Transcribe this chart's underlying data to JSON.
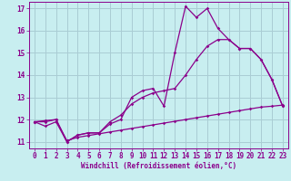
{
  "bg_color": "#c8eef0",
  "grid_color": "#aaccd4",
  "line_color": "#8b008b",
  "xlabel": "Windchill (Refroidissement éolien,°C)",
  "xlim": [
    -0.5,
    23.5
  ],
  "ylim": [
    10.7,
    17.3
  ],
  "yticks": [
    11,
    12,
    13,
    14,
    15,
    16,
    17
  ],
  "xticks": [
    0,
    1,
    2,
    3,
    4,
    5,
    6,
    7,
    8,
    9,
    10,
    11,
    12,
    13,
    14,
    15,
    16,
    17,
    18,
    19,
    20,
    21,
    22,
    23
  ],
  "line1_x": [
    0,
    1,
    2,
    3,
    4,
    5,
    6,
    7,
    8,
    9,
    10,
    11,
    12,
    13,
    14,
    15,
    16,
    17,
    18,
    19,
    20,
    21,
    22,
    23
  ],
  "line1_y": [
    11.9,
    11.7,
    11.9,
    11.0,
    11.3,
    11.4,
    11.4,
    11.8,
    12.0,
    13.0,
    13.3,
    13.4,
    12.6,
    15.0,
    17.1,
    16.6,
    17.0,
    16.1,
    15.6,
    15.2,
    15.2,
    14.7,
    13.8,
    12.6
  ],
  "line2_x": [
    0,
    1,
    2,
    3,
    4,
    5,
    6,
    7,
    8,
    9,
    10,
    11,
    12,
    13,
    14,
    15,
    16,
    17,
    18,
    19,
    20,
    21,
    22,
    23
  ],
  "line2_y": [
    11.9,
    11.9,
    12.0,
    11.0,
    11.3,
    11.4,
    11.4,
    11.9,
    12.2,
    12.7,
    13.0,
    13.2,
    13.3,
    13.4,
    14.0,
    14.7,
    15.3,
    15.6,
    15.6,
    15.2,
    15.2,
    14.7,
    13.8,
    12.6
  ],
  "line3_x": [
    0,
    1,
    2,
    3,
    4,
    5,
    6,
    7,
    8,
    9,
    10,
    11,
    12,
    13,
    14,
    15,
    16,
    17,
    18,
    19,
    20,
    21,
    22,
    23
  ],
  "line3_y": [
    11.9,
    11.95,
    12.0,
    11.05,
    11.2,
    11.28,
    11.36,
    11.44,
    11.52,
    11.6,
    11.68,
    11.76,
    11.84,
    11.92,
    12.0,
    12.08,
    12.16,
    12.24,
    12.32,
    12.4,
    12.48,
    12.56,
    12.6,
    12.65
  ]
}
